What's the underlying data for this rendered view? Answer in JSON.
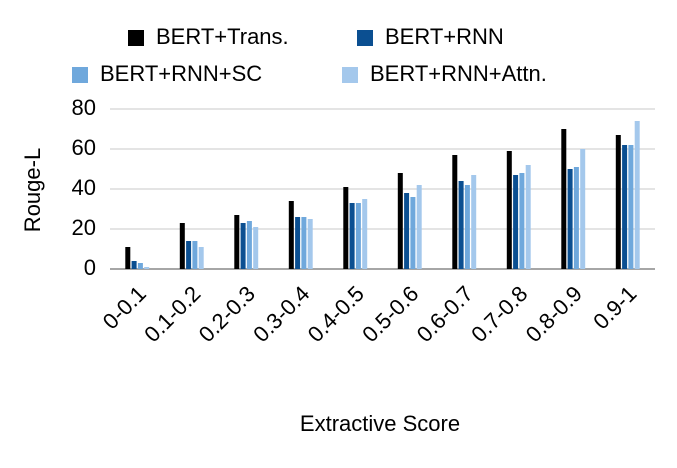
{
  "chart_data": {
    "type": "bar",
    "x_label": "Extractive Score",
    "y_label": "Rouge-L",
    "categories": [
      "0-0.1",
      "0.1-0.2",
      "0.2-0.3",
      "0.3-0.4",
      "0.4-0.5",
      "0.5-0.6",
      "0.6-0.7",
      "0.7-0.8",
      "0.8-0.9",
      "0.9-1"
    ],
    "series": [
      {
        "name": "BERT+Trans.",
        "color": "#000000",
        "values": [
          11,
          23,
          27,
          34,
          41,
          48,
          57,
          59,
          70,
          67
        ]
      },
      {
        "name": "BERT+RNN",
        "color": "#0b4f91",
        "values": [
          4,
          14,
          23,
          26,
          33,
          38,
          44,
          47,
          50,
          62
        ]
      },
      {
        "name": "BERT+RNN+SC",
        "color": "#6fa8dc",
        "values": [
          3,
          14,
          24,
          26,
          33,
          36,
          42,
          48,
          51,
          62
        ]
      },
      {
        "name": "BERT+RNN+Attn.",
        "color": "#a4c8ec",
        "values": [
          1,
          11,
          21,
          25,
          35,
          42,
          47,
          52,
          60,
          74
        ]
      }
    ],
    "ylim": [
      0,
      80
    ],
    "yticks": [
      0,
      20,
      40,
      60,
      80
    ],
    "grid": true,
    "legend": "top"
  }
}
